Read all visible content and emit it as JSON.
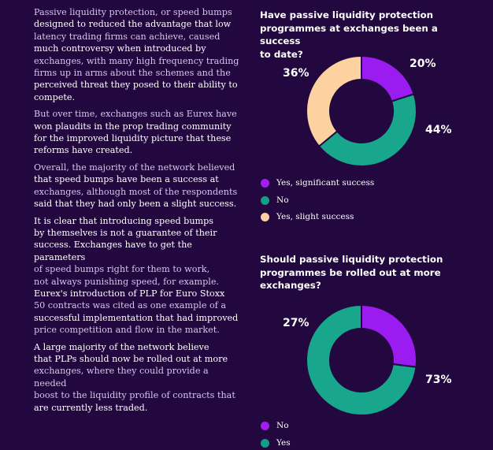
{
  "paragraphs": [
    {
      "lines": [
        {
          "t": "Passive liquidity protection, or speed bumps",
          "dim": true
        },
        {
          "t": "designed to reduced the advantage that low",
          "dim": false
        },
        {
          "t": "latency trading firms can achieve, caused",
          "dim": true
        },
        {
          "t": "much controversy when introduced by",
          "dim": false
        },
        {
          "t": "exchanges, with many high frequency trading",
          "dim": true
        },
        {
          "t": "firms up in arms about the schemes and the",
          "dim": true
        },
        {
          "t": "perceived threat they posed to their ability to",
          "dim": false
        },
        {
          "t": "compete.",
          "dim": false
        }
      ]
    },
    {
      "lines": [
        {
          "t": "But over time, exchanges such as Eurex have",
          "dim": true
        },
        {
          "t": "won plaudits in the prop trading community",
          "dim": false
        },
        {
          "t": "for the improved liquidity picture that these",
          "dim": false
        },
        {
          "t": "reforms have created.",
          "dim": false
        }
      ]
    },
    {
      "lines": [
        {
          "t": "Overall, the majority of the network believed",
          "dim": true
        },
        {
          "t": "that speed bumps have been a success at",
          "dim": false
        },
        {
          "t": "exchanges, although most of the respondents",
          "dim": true
        },
        {
          "t": "said that they had only been a slight success.",
          "dim": false
        }
      ]
    },
    {
      "lines": [
        {
          "t": "It is clear that introducing speed bumps",
          "dim": false
        },
        {
          "t": "by themselves is not a guarantee of their",
          "dim": false
        },
        {
          "t": "success. Exchanges have to get the parameters",
          "dim": false
        },
        {
          "t": "of speed bumps right for them to work,",
          "dim": true
        },
        {
          "t": "not always punishing speed, for example.",
          "dim": true
        },
        {
          "t": "Eurex's introduction of PLP for Euro Stoxx",
          "dim": false
        },
        {
          "t": "50 contracts was cited as one example of a",
          "dim": true
        },
        {
          "t": "successful implementation that had improved",
          "dim": false
        },
        {
          "t": "price competition and flow in the market.",
          "dim": true
        }
      ]
    },
    {
      "lines": [
        {
          "t": "A large majority of the network believe",
          "dim": false
        },
        {
          "t": "that PLPs should now be rolled out at more",
          "dim": false
        },
        {
          "t": "exchanges, where they could provide a needed",
          "dim": true
        },
        {
          "t": "boost to the liquidity profile of contracts that",
          "dim": true
        },
        {
          "t": "are currently less traded.",
          "dim": false
        }
      ]
    }
  ],
  "chart_data": [
    {
      "type": "pie",
      "title_lines": [
        "Have passive liquidity protection",
        "programmes at exchanges been a success",
        "to date?"
      ],
      "categories": [
        "Yes, significant success",
        "No",
        "Yes, slight success"
      ],
      "values": [
        20,
        44,
        36
      ],
      "labels": [
        "20%",
        "44%",
        "36%"
      ],
      "colors": [
        "#9b1cf0",
        "#18a68c",
        "#fdd1a0"
      ],
      "legend_colors": [
        "#a21cfa",
        "#0f9e86",
        "#fdd0a2"
      ]
    },
    {
      "type": "pie",
      "title_lines": [
        "Should passive liquidity protection",
        "programmes be rolled out at more",
        "exchanges?"
      ],
      "categories": [
        "No",
        "Yes"
      ],
      "values": [
        27,
        73
      ],
      "labels": [
        "27%",
        "73%"
      ],
      "colors": [
        "#9b1cf0",
        "#18a68c"
      ],
      "legend_colors": [
        "#a21cfa",
        "#0f9e86"
      ]
    }
  ]
}
